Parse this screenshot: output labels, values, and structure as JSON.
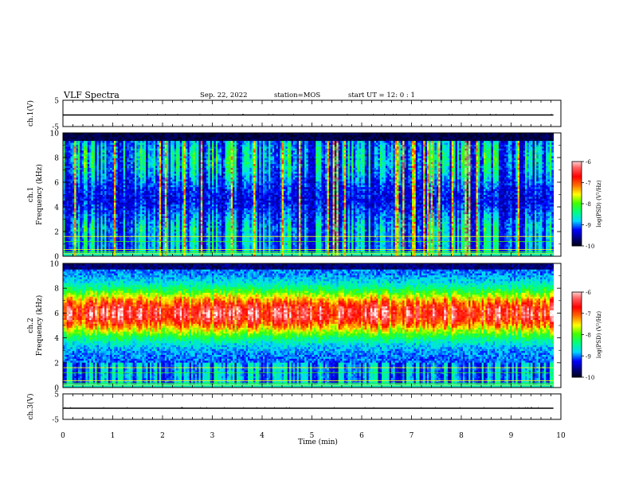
{
  "header": {
    "title": "VLF Spectra",
    "date": "Sep. 22, 2022",
    "station": "station=MOS",
    "start_ut": "start  UT =   12: 0  : 1"
  },
  "colors": {
    "background": "#ffffff",
    "axis": "#000000",
    "spectrogram_scale": [
      "#000000",
      "#00007a",
      "#0000ff",
      "#00d8ff",
      "#00ff80",
      "#40ff00",
      "#ffff00",
      "#ff7000",
      "#ff0000",
      "#ff6060",
      "#ffffff"
    ]
  },
  "chart_data": [
    {
      "name": "ch1-voltage",
      "type": "line",
      "ylabel": "ch.1(V)",
      "yticks": [
        5,
        -5
      ],
      "ylim": [
        -5,
        5
      ],
      "xlim": [
        0,
        10
      ],
      "x": [
        0,
        9.85
      ],
      "y": [
        0,
        0
      ]
    },
    {
      "name": "ch1-spectrogram",
      "type": "heatmap",
      "ylabel": "ch.1\nFrequency (kHz)",
      "ylim": [
        0,
        10
      ],
      "yticks": [
        0,
        2,
        4,
        6,
        8,
        10
      ],
      "xlim": [
        0,
        10
      ],
      "data_end_min": 9.85,
      "colorbar": {
        "label": "log(PSD) (V²/Hz)",
        "range": [
          -10,
          -6
        ],
        "ticks": [
          -6,
          -7,
          -8,
          -9,
          -10
        ]
      }
    },
    {
      "name": "ch2-spectrogram",
      "type": "heatmap",
      "ylabel": "ch.2\nFrequency (kHz)",
      "ylim": [
        0,
        10
      ],
      "yticks": [
        0,
        2,
        4,
        6,
        8,
        10
      ],
      "xlim": [
        0,
        10
      ],
      "data_end_min": 9.85,
      "colorbar": {
        "label": "log(PSD) (V²/Hz)",
        "range": [
          -10,
          -6
        ],
        "ticks": [
          -6,
          -7,
          -8,
          -9,
          -10
        ]
      }
    },
    {
      "name": "ch3-voltage",
      "type": "line",
      "ylabel": "ch.3(V)",
      "yticks": [
        5,
        -5
      ],
      "ylim": [
        -5,
        5
      ],
      "xlim": [
        0,
        10
      ],
      "x": [
        0,
        9.85
      ],
      "y": [
        0,
        0
      ]
    }
  ],
  "x_axis": {
    "label": "Time (min)",
    "ticks": [
      0,
      1,
      2,
      3,
      4,
      5,
      6,
      7,
      8,
      9,
      10
    ]
  }
}
